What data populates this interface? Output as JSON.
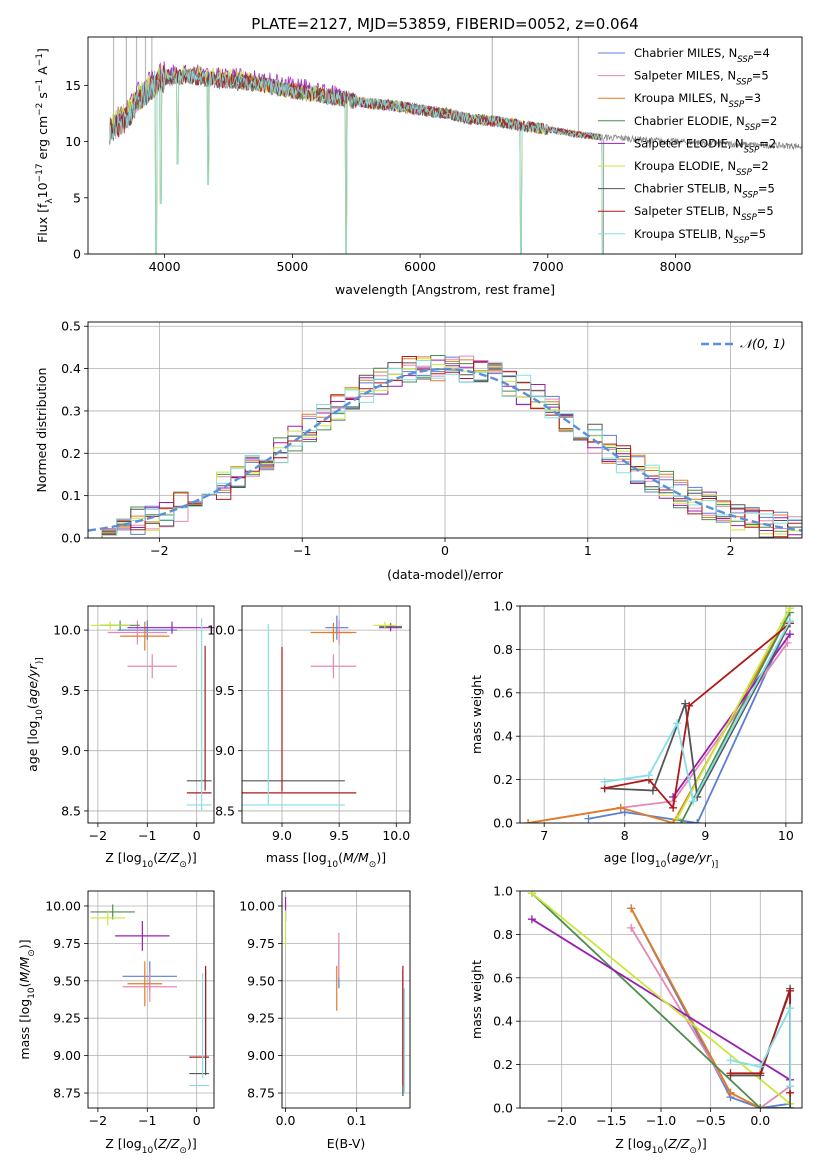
{
  "figure_title": "PLATE=2127, MJD=53859, FIBERID=0052, z=0.064",
  "colors": {
    "chabrier_miles": "#5b7fd4",
    "salpeter_miles": "#e787b4",
    "kroupa_miles": "#e07c24",
    "chabrier_elodie": "#4f8c4f",
    "salpeter_elodie": "#9a1fb0",
    "kroupa_elodie": "#c9e83a",
    "chabrier_stelib": "#555555",
    "salpeter_stelib": "#b01818",
    "kroupa_stelib": "#86dfe6",
    "data": "#808080",
    "gaussian": "#5b8fd9"
  },
  "legend_models": [
    "Chabrier MILES",
    "Salpeter MILES",
    "Kroupa MILES",
    "Chabrier ELODIE",
    "Salpeter ELODIE",
    "Kroupa ELODIE",
    "Chabrier STELIB",
    "Salpeter STELIB",
    "Kroupa STELIB"
  ],
  "legend_nssp_prefix": "N",
  "legend_nssp_sub": "SSP",
  "legend_nssp_values": [
    "=4",
    "=5",
    "=3",
    "=2",
    "=2",
    "=2",
    "=5",
    "=5",
    "=5"
  ],
  "chart_data": [
    {
      "id": "spectrum",
      "type": "line",
      "title": "PLATE=2127, MJD=53859, FIBERID=0052, z=0.064",
      "xlabel": "wavelength [Angstrom, rest frame]",
      "ylabel_parts": [
        "Flux [f",
        "λ",
        "10",
        "−17",
        " erg cm",
        "−2",
        " s",
        "−1",
        " A",
        "−1",
        "]"
      ],
      "xlim": [
        3400,
        8990
      ],
      "ylim": [
        0,
        19.3
      ],
      "xticks": [
        4000,
        5000,
        6000,
        7000,
        8000
      ],
      "yticks": [
        0,
        5,
        10,
        15
      ],
      "grid": false,
      "legend_position": "top-right",
      "continuum_x": [
        3570,
        3650,
        3700,
        3800,
        3900,
        4000,
        4200,
        4400,
        4600,
        4800,
        5000,
        5200,
        5400,
        5600,
        5800,
        6000,
        6200,
        6400,
        6600,
        6800,
        7000,
        7200,
        7400,
        7600,
        7800,
        8000,
        8200,
        8400,
        8600,
        8800,
        8990
      ],
      "continuum_y": [
        11.0,
        11.6,
        12.0,
        13.8,
        14.8,
        15.7,
        15.8,
        15.5,
        15.3,
        15.0,
        14.5,
        14.2,
        13.8,
        13.4,
        13.2,
        12.8,
        12.5,
        12.0,
        11.8,
        11.4,
        11.1,
        10.7,
        10.4,
        10.3,
        10.1,
        10.0,
        9.9,
        9.8,
        9.7,
        9.65,
        9.6
      ],
      "dips": [
        {
          "x": 3934,
          "y": 0
        },
        {
          "x": 3970,
          "y": 4.5
        },
        {
          "x": 4102,
          "y": 8.0
        },
        {
          "x": 4340,
          "y": 6.2
        },
        {
          "x": 5420,
          "y": 0
        },
        {
          "x": 6790,
          "y": 0
        },
        {
          "x": 7430,
          "y": 0
        }
      ]
    },
    {
      "id": "residuals",
      "type": "histogram",
      "xlabel": "(data-model)/error",
      "ylabel": "Normed distribution",
      "xlim": [
        -2.5,
        2.5
      ],
      "ylim": [
        0,
        0.51
      ],
      "xticks": [
        -2,
        -1,
        0,
        1,
        2
      ],
      "yticks": [
        0.0,
        0.1,
        0.2,
        0.3,
        0.4,
        0.5
      ],
      "grid": true,
      "legend_label": "𝒩(0, 1)",
      "legend_position": "top-right",
      "bin_width": 0.1,
      "bin_start": -2.5,
      "reference_curve": "normal(0,1)"
    },
    {
      "id": "age_vs_Z",
      "type": "scatter",
      "xlabel_parts": [
        "Z [log",
        "10",
        "(",
        "Z/Z",
        "⊙",
        ")]"
      ],
      "ylabel_parts": [
        "age  [log",
        "10",
        "(",
        "age/yr",
        ")]"
      ],
      "xlim": [
        -2.2,
        0.35
      ],
      "ylim": [
        8.4,
        10.2
      ],
      "xticks": [
        -2,
        -1,
        0
      ],
      "yticks": [
        8.5,
        9.0,
        9.5,
        10.0
      ],
      "grid": true,
      "points": [
        {
          "model": "chabrier_miles",
          "x": -1.0,
          "y": 10.0,
          "xerr": 0.6,
          "yerr": 0.08
        },
        {
          "model": "salpeter_miles",
          "x": -1.2,
          "y": 9.98,
          "xerr": 0.6,
          "yerr": 0.1
        },
        {
          "model": "salpeter_miles",
          "x": -0.9,
          "y": 9.7,
          "xerr": 0.5,
          "yerr": 0.1
        },
        {
          "model": "kroupa_miles",
          "x": -1.05,
          "y": 9.95,
          "xerr": 0.5,
          "yerr": 0.12
        },
        {
          "model": "chabrier_elodie",
          "x": -1.55,
          "y": 10.04,
          "xerr": 0.4,
          "yerr": 0.04
        },
        {
          "model": "salpeter_elodie",
          "x": -0.5,
          "y": 10.02,
          "xerr": 0.9,
          "yerr": 0.05
        },
        {
          "model": "kroupa_elodie",
          "x": -1.75,
          "y": 10.04,
          "xerr": 0.4,
          "yerr": 0.03
        },
        {
          "model": "chabrier_stelib",
          "x": 0.05,
          "y": 8.75,
          "xerr": 0.25,
          "yerr": 0.0
        },
        {
          "model": "salpeter_stelib",
          "x": 0.17,
          "y": 9.27,
          "xerr": 0.0,
          "yerr": 0.6
        },
        {
          "model": "salpeter_stelib",
          "x": 0.05,
          "y": 8.65,
          "xerr": 0.25,
          "yerr": 0.0
        },
        {
          "model": "kroupa_stelib",
          "x": 0.1,
          "y": 9.3,
          "xerr": 0.0,
          "yerr": 0.8
        },
        {
          "model": "kroupa_stelib",
          "x": 0.05,
          "y": 8.55,
          "xerr": 0.25,
          "yerr": 0.0
        }
      ]
    },
    {
      "id": "age_vs_mass",
      "type": "scatter",
      "xlabel_parts": [
        "mass [log",
        "10",
        "(",
        "M/M",
        "⊙",
        ")]"
      ],
      "ylabel_parts": [],
      "xlim": [
        8.65,
        10.12
      ],
      "ylim": [
        8.4,
        10.2
      ],
      "xticks": [
        9.0,
        9.5,
        10.0
      ],
      "yticks": [
        8.5,
        9.0,
        9.5,
        10.0
      ],
      "grid": true,
      "points": [
        {
          "model": "chabrier_miles",
          "x": 9.48,
          "y": 10.02,
          "xerr": 0.1,
          "yerr": 0.1
        },
        {
          "model": "salpeter_miles",
          "x": 9.5,
          "y": 9.98,
          "xerr": 0.1,
          "yerr": 0.1
        },
        {
          "model": "salpeter_miles",
          "x": 9.45,
          "y": 9.7,
          "xerr": 0.2,
          "yerr": 0.1
        },
        {
          "model": "kroupa_miles",
          "x": 9.45,
          "y": 9.98,
          "xerr": 0.2,
          "yerr": 0.08
        },
        {
          "model": "chabrier_elodie",
          "x": 9.95,
          "y": 10.03,
          "xerr": 0.1,
          "yerr": 0.03
        },
        {
          "model": "salpeter_elodie",
          "x": 9.95,
          "y": 10.02,
          "xerr": 0.1,
          "yerr": 0.03
        },
        {
          "model": "kroupa_elodie",
          "x": 9.9,
          "y": 10.04,
          "xerr": 0.1,
          "yerr": 0.03
        },
        {
          "model": "chabrier_stelib",
          "x": 9.0,
          "y": 8.75,
          "xerr": 0.55,
          "yerr": 0.0
        },
        {
          "model": "salpeter_stelib",
          "x": 9.0,
          "y": 9.26,
          "xerr": 0.0,
          "yerr": 0.6
        },
        {
          "model": "salpeter_stelib",
          "x": 9.1,
          "y": 8.65,
          "xerr": 0.55,
          "yerr": 0.0
        },
        {
          "model": "kroupa_stelib",
          "x": 8.88,
          "y": 9.3,
          "xerr": 0.0,
          "yerr": 0.75
        },
        {
          "model": "kroupa_stelib",
          "x": 9.0,
          "y": 8.55,
          "xerr": 0.55,
          "yerr": 0.0
        }
      ]
    },
    {
      "id": "mass_weight_vs_age",
      "type": "line",
      "xlabel_parts": [
        "age  [log",
        "10",
        "(",
        "age/yr",
        ")]"
      ],
      "ylabel": "mass weight",
      "xlim": [
        6.7,
        10.2
      ],
      "ylim": [
        0,
        1
      ],
      "xticks": [
        7,
        8,
        9,
        10
      ],
      "yticks": [
        0.0,
        0.2,
        0.4,
        0.6,
        0.8,
        1.0
      ],
      "grid": true,
      "series": [
        {
          "model": "chabrier_miles",
          "x": [
            7.55,
            8.0,
            8.9,
            10.05
          ],
          "y": [
            0.02,
            0.05,
            0.0,
            0.93
          ]
        },
        {
          "model": "salpeter_miles",
          "x": [
            6.8,
            7.95,
            8.6,
            10.02
          ],
          "y": [
            0.0,
            0.07,
            0.1,
            0.83
          ]
        },
        {
          "model": "kroupa_miles",
          "x": [
            6.8,
            7.95,
            8.6,
            9.98
          ],
          "y": [
            0.0,
            0.07,
            0.0,
            0.92
          ]
        },
        {
          "model": "chabrier_elodie",
          "x": [
            8.7,
            10.05
          ],
          "y": [
            0.0,
            0.97
          ]
        },
        {
          "model": "salpeter_elodie",
          "x": [
            8.6,
            10.05
          ],
          "y": [
            0.12,
            0.87
          ]
        },
        {
          "model": "kroupa_elodie",
          "x": [
            8.65,
            10.05
          ],
          "y": [
            0.02,
            0.99
          ]
        },
        {
          "model": "chabrier_stelib",
          "x": [
            7.75,
            8.35,
            8.75,
            8.9,
            10.05
          ],
          "y": [
            0.16,
            0.15,
            0.55,
            0.12,
            0.92
          ]
        },
        {
          "model": "salpeter_stelib",
          "x": [
            7.75,
            8.3,
            8.6,
            8.8,
            10.05
          ],
          "y": [
            0.16,
            0.2,
            0.07,
            0.54,
            0.92
          ]
        },
        {
          "model": "kroupa_stelib",
          "x": [
            7.75,
            8.3,
            8.65,
            8.85,
            10.05
          ],
          "y": [
            0.19,
            0.22,
            0.46,
            0.1,
            0.93
          ]
        }
      ]
    },
    {
      "id": "mass_vs_Z",
      "type": "scatter",
      "xlabel_parts": [
        "Z [log",
        "10",
        "(",
        "Z/Z",
        "⊙",
        ")]"
      ],
      "ylabel_parts": [
        "mass [log",
        "10",
        "(",
        "M/M",
        "⊙",
        ")]"
      ],
      "xlim": [
        -2.2,
        0.35
      ],
      "ylim": [
        8.65,
        10.1
      ],
      "xticks": [
        -2,
        -1,
        0
      ],
      "yticks": [
        8.75,
        9.0,
        9.25,
        9.5,
        9.75,
        10.0
      ],
      "grid": true,
      "points": [
        {
          "model": "chabrier_miles",
          "x": -0.95,
          "y": 9.53,
          "xerr": 0.55,
          "yerr": 0.1
        },
        {
          "model": "salpeter_miles",
          "x": -0.95,
          "y": 9.46,
          "xerr": 0.55,
          "yerr": 0.1
        },
        {
          "model": "kroupa_miles",
          "x": -1.05,
          "y": 9.48,
          "xerr": 0.35,
          "yerr": 0.15
        },
        {
          "model": "chabrier_elodie",
          "x": -1.7,
          "y": 9.96,
          "xerr": 0.45,
          "yerr": 0.05
        },
        {
          "model": "salpeter_elodie",
          "x": -1.1,
          "y": 9.8,
          "xerr": 0.55,
          "yerr": 0.1
        },
        {
          "model": "kroupa_elodie",
          "x": -1.8,
          "y": 9.92,
          "xerr": 0.35,
          "yerr": 0.05
        },
        {
          "model": "chabrier_stelib",
          "x": 0.05,
          "y": 8.88,
          "xerr": 0.2,
          "yerr": 0.0
        },
        {
          "model": "chabrier_stelib",
          "x": 0.18,
          "y": 9.22,
          "xerr": 0.0,
          "yerr": 0.35
        },
        {
          "model": "salpeter_stelib",
          "x": 0.05,
          "y": 8.99,
          "xerr": 0.2,
          "yerr": 0.0
        },
        {
          "model": "salpeter_stelib",
          "x": 0.18,
          "y": 9.3,
          "xerr": 0.0,
          "yerr": 0.3
        },
        {
          "model": "kroupa_stelib",
          "x": 0.05,
          "y": 8.8,
          "xerr": 0.2,
          "yerr": 0.0
        },
        {
          "model": "kroupa_stelib",
          "x": 0.12,
          "y": 9.2,
          "xerr": 0.0,
          "yerr": 0.35
        }
      ]
    },
    {
      "id": "mass_vs_ebv",
      "type": "scatter",
      "xlabel": "E(B-V)",
      "ylabel_parts": [],
      "xlim": [
        -0.005,
        0.175
      ],
      "ylim": [
        8.65,
        10.1
      ],
      "xticks": [
        0.0,
        0.1
      ],
      "yticks": [
        8.75,
        9.0,
        9.25,
        9.5,
        9.75,
        10.0
      ],
      "grid": true,
      "points": [
        {
          "model": "chabrier_miles",
          "x": 0.075,
          "y": 9.6,
          "xerr": 0.0,
          "yerr": 0.15
        },
        {
          "model": "salpeter_miles",
          "x": 0.075,
          "y": 9.67,
          "xerr": 0.0,
          "yerr": 0.15
        },
        {
          "model": "kroupa_miles",
          "x": 0.072,
          "y": 9.45,
          "xerr": 0.0,
          "yerr": 0.15
        },
        {
          "model": "salpeter_elodie",
          "x": 0.0,
          "y": 9.98,
          "xerr": 0.0,
          "yerr": 0.08
        },
        {
          "model": "kroupa_elodie",
          "x": 0.0,
          "y": 9.85,
          "xerr": 0.0,
          "yerr": 0.12
        },
        {
          "model": "chabrier_stelib",
          "x": 0.165,
          "y": 9.15,
          "xerr": 0.0,
          "yerr": 0.42
        },
        {
          "model": "salpeter_stelib",
          "x": 0.165,
          "y": 9.2,
          "xerr": 0.0,
          "yerr": 0.4
        },
        {
          "model": "kroupa_stelib",
          "x": 0.167,
          "y": 9.1,
          "xerr": 0.0,
          "yerr": 0.35
        }
      ]
    },
    {
      "id": "mass_weight_vs_Z",
      "type": "line",
      "xlabel_parts": [
        "Z [log",
        "10",
        "(",
        "Z/Z",
        "⊙",
        ")]"
      ],
      "ylabel": "mass weight",
      "xlim": [
        -2.42,
        0.42
      ],
      "ylim": [
        0,
        1
      ],
      "xticks": [
        -2.0,
        -1.5,
        -1.0,
        -0.5,
        0.0
      ],
      "yticks": [
        0.0,
        0.2,
        0.4,
        0.6,
        0.8,
        1.0
      ],
      "grid": true,
      "series": [
        {
          "model": "chabrier_miles",
          "x": [
            -1.3,
            -0.3,
            0.0,
            0.3
          ],
          "y": [
            0.92,
            0.05,
            0.0,
            0.02
          ]
        },
        {
          "model": "salpeter_miles",
          "x": [
            -1.3,
            -0.3,
            0.0,
            0.3
          ],
          "y": [
            0.83,
            0.07,
            0.0,
            0.1
          ]
        },
        {
          "model": "kroupa_miles",
          "x": [
            -1.3,
            -0.3,
            0.0,
            0.3
          ],
          "y": [
            0.92,
            0.07,
            0.0,
            0.0
          ]
        },
        {
          "model": "chabrier_elodie",
          "x": [
            -2.3,
            0.0,
            0.3
          ],
          "y": [
            0.99,
            0.0,
            0.0
          ]
        },
        {
          "model": "salpeter_elodie",
          "x": [
            -2.3,
            0.3
          ],
          "y": [
            0.87,
            0.13
          ]
        },
        {
          "model": "kroupa_elodie",
          "x": [
            -2.3,
            0.3
          ],
          "y": [
            0.99,
            0.02
          ]
        },
        {
          "model": "chabrier_stelib",
          "x": [
            -0.3,
            0.0,
            0.3,
            0.3
          ],
          "y": [
            0.15,
            0.15,
            0.55,
            0.0
          ]
        },
        {
          "model": "salpeter_stelib",
          "x": [
            -0.3,
            0.0,
            0.3,
            0.3
          ],
          "y": [
            0.16,
            0.16,
            0.54,
            0.07
          ]
        },
        {
          "model": "kroupa_stelib",
          "x": [
            -0.3,
            0.0,
            0.3,
            0.3
          ],
          "y": [
            0.22,
            0.19,
            0.46,
            0.1
          ]
        }
      ]
    }
  ]
}
